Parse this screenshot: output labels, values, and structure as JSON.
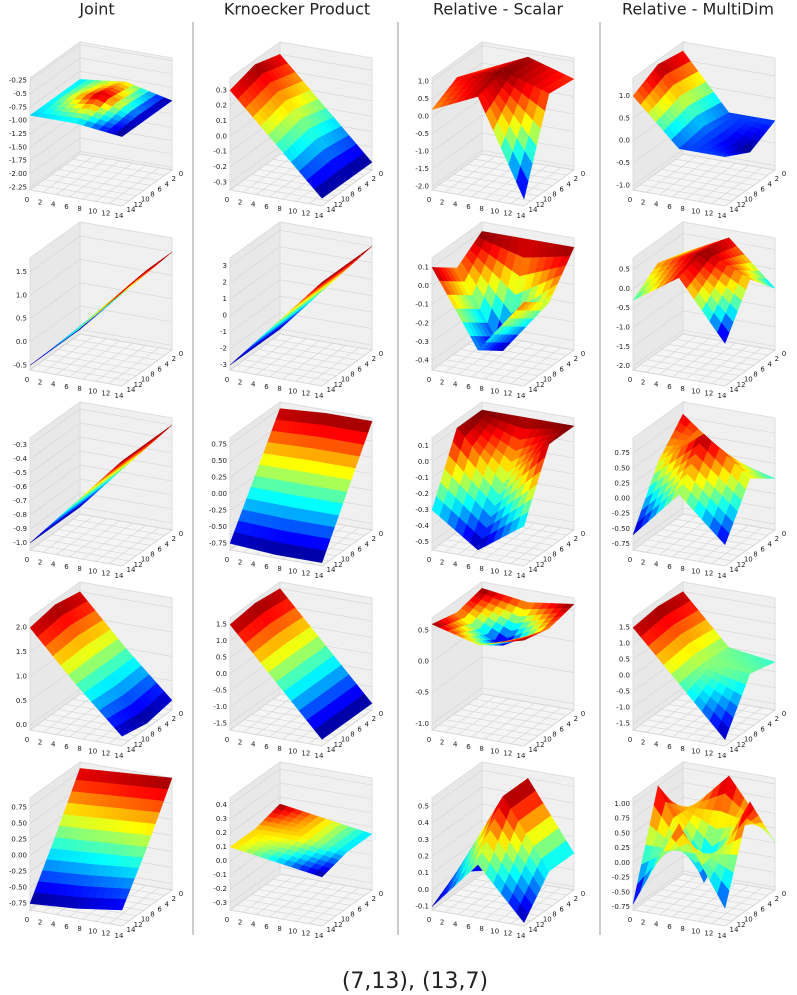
{
  "columns": [
    "Joint",
    "Krnoecker Product",
    "Relative - Scalar",
    "Relative - MultiDim"
  ],
  "caption": "(7,13), (13,7)",
  "chart_data": [
    {
      "type": "surface",
      "x": [
        0,
        7,
        14
      ],
      "y": [
        0,
        7,
        14
      ],
      "z": [
        [
          -0.9,
          -0.8,
          -1.0
        ],
        [
          -0.9,
          -0.7,
          -1.0
        ],
        [
          -0.9,
          -0.9,
          -1.0
        ]
      ],
      "xlim": [
        0,
        14
      ],
      "ylim": [
        0,
        14
      ],
      "zlim": [
        -2.3,
        -0.2
      ],
      "xticks": [
        0,
        2,
        4,
        6,
        8,
        10,
        12,
        14
      ],
      "yticks": [
        0,
        2,
        4,
        6,
        8,
        10,
        12,
        14
      ],
      "zticks": [
        -0.25,
        -0.5,
        -0.75,
        {
          "value": -1,
          "label": "-1.00"
        },
        -1.25,
        {
          "value": -1.5,
          "label": "-1.50"
        },
        -1.75,
        {
          "value": -2,
          "label": "-2.00"
        },
        -2.25
      ]
    },
    {
      "type": "surface",
      "x": [
        0,
        7,
        14
      ],
      "y": [
        0,
        7,
        14
      ],
      "z": [
        [
          0.3,
          0,
          -0.3
        ],
        [
          0.35,
          0.05,
          -0.3
        ],
        [
          0.3,
          0,
          -0.3
        ]
      ],
      "xlim": [
        0,
        14
      ],
      "ylim": [
        0,
        14
      ],
      "zlim": [
        -0.35,
        0.38
      ],
      "xticks": [
        0,
        2,
        4,
        6,
        8,
        10,
        12,
        14
      ],
      "yticks": [
        0,
        2,
        4,
        6,
        8,
        10,
        12,
        14
      ],
      "zticks": [
        0.3,
        0.2,
        0.1,
        {
          "value": 0,
          "label": "0.0"
        },
        -0.1,
        -0.2,
        -0.3
      ]
    },
    {
      "type": "surface",
      "x": [
        0,
        7,
        14
      ],
      "y": [
        0,
        7,
        14
      ],
      "z": [
        [
          0.3,
          0.9,
          0.5
        ],
        [
          0.6,
          1.0,
          0.6
        ],
        [
          0.2,
          0.8,
          -1.9
        ]
      ],
      "xlim": [
        0,
        14
      ],
      "ylim": [
        0,
        14
      ],
      "zlim": [
        -2.1,
        1.1
      ],
      "xticks": [
        0,
        2,
        4,
        6,
        8,
        10,
        12,
        14
      ],
      "yticks": [
        0,
        2,
        4,
        6,
        8,
        10,
        12,
        14
      ],
      "zticks": [
        {
          "value": 1,
          "label": "1.0"
        },
        0.5,
        {
          "value": 0,
          "label": "0.0"
        },
        -0.5,
        {
          "value": -1,
          "label": "-1.0"
        },
        -1.5,
        {
          "value": -2,
          "label": "-2.0"
        }
      ]
    },
    {
      "type": "surface",
      "x": [
        0,
        7,
        14
      ],
      "y": [
        0,
        7,
        14
      ],
      "z": [
        [
          1.2,
          0,
          0
        ],
        [
          1.3,
          0.1,
          -0.3
        ],
        [
          1.0,
          0,
          0
        ]
      ],
      "xlim": [
        0,
        14
      ],
      "ylim": [
        0,
        14
      ],
      "zlim": [
        -1.1,
        1.4
      ],
      "xticks": [
        0,
        2,
        4,
        6,
        8,
        10,
        12,
        14
      ],
      "yticks": [
        0,
        2,
        4,
        6,
        8,
        10,
        12,
        14
      ],
      "zticks": [
        {
          "value": 1,
          "label": "1.0"
        },
        0.5,
        {
          "value": 0,
          "label": "0.0"
        },
        -0.5,
        {
          "value": -1,
          "label": "-1.0"
        }
      ]
    },
    {
      "type": "surface",
      "x": [
        0,
        7,
        14
      ],
      "y": [
        0,
        7,
        14
      ],
      "z": [
        [
          -0.5,
          0.5,
          1.5
        ],
        [
          -0.5,
          0.5,
          1.5
        ],
        [
          -0.5,
          0.4,
          1.4
        ]
      ],
      "xlim": [
        0,
        14
      ],
      "ylim": [
        0,
        14
      ],
      "zlim": [
        -0.6,
        1.8
      ],
      "xticks": [
        0,
        2,
        4,
        6,
        8,
        10,
        12,
        14
      ],
      "yticks": [
        0,
        2,
        4,
        6,
        8,
        10,
        12,
        14
      ],
      "zticks": [
        1.5,
        {
          "value": 1,
          "label": "1.0"
        },
        0.5,
        {
          "value": 0,
          "label": "0.0"
        },
        -0.5
      ]
    },
    {
      "type": "surface",
      "x": [
        0,
        7,
        14
      ],
      "y": [
        0,
        7,
        14
      ],
      "z": [
        [
          -3,
          0,
          3
        ],
        [
          -3,
          0,
          3
        ],
        [
          -3,
          0,
          3
        ]
      ],
      "xlim": [
        0,
        14
      ],
      "ylim": [
        0,
        14
      ],
      "zlim": [
        -3.3,
        3.5
      ],
      "xticks": [
        0,
        2,
        4,
        6,
        8,
        10,
        12,
        14
      ],
      "yticks": [
        0,
        2,
        4,
        6,
        8,
        10,
        12,
        14
      ],
      "zticks": [
        3,
        2,
        1,
        0,
        -1,
        -2,
        -3
      ]
    },
    {
      "type": "surface",
      "x": [
        0,
        7,
        14
      ],
      "y": [
        0,
        7,
        14
      ],
      "z": [
        [
          0.1,
          0.1,
          0.1
        ],
        [
          0,
          -0.4,
          -0.1
        ],
        [
          0.1,
          -0.3,
          0
        ]
      ],
      "xlim": [
        0,
        14
      ],
      "ylim": [
        0,
        14
      ],
      "zlim": [
        -0.45,
        0.15
      ],
      "xticks": [
        0,
        2,
        4,
        6,
        8,
        10,
        12,
        14
      ],
      "yticks": [
        0,
        2,
        4,
        6,
        8,
        10,
        12,
        14
      ],
      "zticks": [
        0.1,
        {
          "value": 0,
          "label": "0.0"
        },
        -0.1,
        -0.2,
        -0.3,
        -0.4
      ]
    },
    {
      "type": "surface",
      "x": [
        0,
        7,
        14
      ],
      "y": [
        0,
        7,
        14
      ],
      "z": [
        [
          0,
          0.6,
          -0.5
        ],
        [
          0.2,
          0.7,
          0.2
        ],
        [
          -0.3,
          0.5,
          -1.0
        ]
      ],
      "xlim": [
        0,
        14
      ],
      "ylim": [
        0,
        14
      ],
      "zlim": [
        -2.1,
        0.8
      ],
      "xticks": [
        0,
        2,
        4,
        6,
        8,
        10,
        12,
        14
      ],
      "yticks": [
        0,
        2,
        4,
        6,
        8,
        10,
        12,
        14
      ],
      "zticks": [
        0.5,
        {
          "value": 0,
          "label": "0.0"
        },
        -0.5,
        {
          "value": -1,
          "label": "-1.0"
        },
        -1.5,
        {
          "value": -2,
          "label": "-2.0"
        }
      ]
    },
    {
      "type": "surface",
      "x": [
        0,
        7,
        14
      ],
      "y": [
        0,
        7,
        14
      ],
      "z": [
        [
          -1.0,
          -0.65,
          -0.3
        ],
        [
          -1.0,
          -0.65,
          -0.3
        ],
        [
          -1.0,
          -0.65,
          -0.3
        ]
      ],
      "xlim": [
        0,
        14
      ],
      "ylim": [
        0,
        14
      ],
      "zlim": [
        -1.05,
        -0.25
      ],
      "xticks": [
        0,
        2,
        4,
        6,
        8,
        10,
        12,
        14
      ],
      "yticks": [
        0,
        2,
        4,
        6,
        8,
        10,
        12,
        14
      ],
      "zticks": [
        -0.3,
        -0.4,
        -0.5,
        -0.6,
        -0.7,
        -0.8,
        -0.9,
        {
          "value": -1,
          "label": "-1.0"
        }
      ]
    },
    {
      "type": "surface",
      "x": [
        0,
        7,
        14
      ],
      "y": [
        0,
        7,
        14
      ],
      "z": [
        [
          0.75,
          0.8,
          0.8
        ],
        [
          0,
          0,
          0
        ],
        [
          -0.75,
          -0.8,
          -0.8
        ]
      ],
      "xlim": [
        0,
        14
      ],
      "ylim": [
        0,
        14
      ],
      "zlim": [
        -0.85,
        0.85
      ],
      "xticks": [
        0,
        2,
        4,
        6,
        8,
        10,
        12,
        14
      ],
      "yticks": [
        0,
        2,
        4,
        6,
        8,
        10,
        12,
        14
      ],
      "zticks": [
        0.75,
        {
          "value": 0.5,
          "label": "0.50"
        },
        0.25,
        {
          "value": 0,
          "label": "0.00"
        },
        -0.25,
        {
          "value": -0.5,
          "label": "-0.50"
        },
        -0.75
      ]
    },
    {
      "type": "surface",
      "x": [
        0,
        7,
        14
      ],
      "y": [
        0,
        7,
        14
      ],
      "z": [
        [
          0.1,
          0.1,
          0.1
        ],
        [
          0.1,
          -0.2,
          0.1
        ],
        [
          -0.3,
          -0.5,
          -0.3
        ]
      ],
      "xlim": [
        0,
        14
      ],
      "ylim": [
        0,
        14
      ],
      "zlim": [
        -0.55,
        0.15
      ],
      "xticks": [
        0,
        2,
        4,
        6,
        8,
        10,
        12,
        14
      ],
      "yticks": [
        0,
        2,
        4,
        6,
        8,
        10,
        12,
        14
      ],
      "zticks": [
        0.1,
        {
          "value": 0,
          "label": "0.0"
        },
        -0.1,
        -0.2,
        -0.3,
        -0.4,
        -0.5
      ]
    },
    {
      "type": "surface",
      "x": [
        0,
        7,
        14
      ],
      "y": [
        0,
        7,
        14
      ],
      "z": [
        [
          0.8,
          0.2,
          0
        ],
        [
          0.3,
          0.9,
          0.3
        ],
        [
          -0.6,
          0.2,
          -0.5
        ]
      ],
      "xlim": [
        0,
        14
      ],
      "ylim": [
        0,
        14
      ],
      "zlim": [
        -0.85,
        1.0
      ],
      "xticks": [
        0,
        2,
        4,
        6,
        8,
        10,
        12,
        14
      ],
      "yticks": [
        0,
        2,
        4,
        6,
        8,
        10,
        12,
        14
      ],
      "zticks": [
        0.75,
        {
          "value": 0.5,
          "label": "0.50"
        },
        0.25,
        {
          "value": 0,
          "label": "0.00"
        },
        -0.25,
        {
          "value": -0.5,
          "label": "-0.50"
        },
        -0.75
      ]
    },
    {
      "type": "surface",
      "x": [
        0,
        7,
        14
      ],
      "y": [
        0,
        7,
        14
      ],
      "z": [
        [
          2.0,
          1.0,
          0.1
        ],
        [
          2.1,
          1.0,
          0
        ],
        [
          2.0,
          1.0,
          0.1
        ]
      ],
      "xlim": [
        0,
        14
      ],
      "ylim": [
        0,
        14
      ],
      "zlim": [
        -0.1,
        2.2
      ],
      "xticks": [
        0,
        2,
        4,
        6,
        8,
        10,
        12,
        14
      ],
      "yticks": [
        0,
        2,
        4,
        6,
        8,
        10,
        12,
        14
      ],
      "zticks": [
        {
          "value": 2,
          "label": "2.0"
        },
        1.5,
        {
          "value": 1,
          "label": "1.0"
        },
        0.5,
        {
          "value": 0,
          "label": "0.0"
        }
      ]
    },
    {
      "type": "surface",
      "x": [
        0,
        7,
        14
      ],
      "y": [
        0,
        7,
        14
      ],
      "z": [
        [
          1.5,
          0,
          -1.5
        ],
        [
          1.6,
          0,
          -1.5
        ],
        [
          1.5,
          0,
          -1.5
        ]
      ],
      "xlim": [
        0,
        14
      ],
      "ylim": [
        0,
        14
      ],
      "zlim": [
        -1.7,
        1.7
      ],
      "xticks": [
        0,
        2,
        4,
        6,
        8,
        10,
        12,
        14
      ],
      "yticks": [
        0,
        2,
        4,
        6,
        8,
        10,
        12,
        14
      ],
      "zticks": [
        1.5,
        {
          "value": 1,
          "label": "1.0"
        },
        0.5,
        {
          "value": 0,
          "label": "0.0"
        },
        -0.5,
        {
          "value": -1,
          "label": "-1.0"
        },
        -1.5
      ]
    },
    {
      "type": "surface",
      "x": [
        0,
        7,
        14
      ],
      "y": [
        0,
        7,
        14
      ],
      "z": [
        [
          0.6,
          0.5,
          0.6
        ],
        [
          0.5,
          0.1,
          0.5
        ],
        [
          0.6,
          0.4,
          0.6
        ]
      ],
      "xlim": [
        0,
        14
      ],
      "ylim": [
        0,
        14
      ],
      "zlim": [
        -1.1,
        0.7
      ],
      "xticks": [
        0,
        2,
        4,
        6,
        8,
        10,
        12,
        14
      ],
      "yticks": [
        0,
        2,
        4,
        6,
        8,
        10,
        12,
        14
      ],
      "zticks": [
        0.5,
        {
          "value": 0,
          "label": "0.0"
        },
        -0.5,
        {
          "value": -1,
          "label": "-1.0"
        }
      ]
    },
    {
      "type": "surface",
      "x": [
        0,
        7,
        14
      ],
      "y": [
        0,
        7,
        14
      ],
      "z": [
        [
          1.5,
          0,
          -0.2
        ],
        [
          1.6,
          0.1,
          0
        ],
        [
          1.5,
          0,
          -1.5
        ]
      ],
      "xlim": [
        0,
        14
      ],
      "ylim": [
        0,
        14
      ],
      "zlim": [
        -1.7,
        1.8
      ],
      "xticks": [
        0,
        2,
        4,
        6,
        8,
        10,
        12,
        14
      ],
      "yticks": [
        0,
        2,
        4,
        6,
        8,
        10,
        12,
        14
      ],
      "zticks": [
        1.5,
        {
          "value": 1,
          "label": "1.0"
        },
        0.5,
        {
          "value": 0,
          "label": "0.0"
        },
        -0.5,
        {
          "value": -1,
          "label": "-1.0"
        },
        -1.5
      ]
    },
    {
      "type": "surface",
      "x": [
        0,
        7,
        14
      ],
      "y": [
        0,
        7,
        14
      ],
      "z": [
        [
          0.8,
          0.85,
          0.9
        ],
        [
          0,
          0.05,
          0.1
        ],
        [
          -0.75,
          -0.7,
          -0.6
        ]
      ],
      "xlim": [
        0,
        14
      ],
      "ylim": [
        0,
        14
      ],
      "zlim": [
        -0.85,
        0.9
      ],
      "xticks": [
        0,
        2,
        4,
        6,
        8,
        10,
        12,
        14
      ],
      "yticks": [
        0,
        2,
        4,
        6,
        8,
        10,
        12,
        14
      ],
      "zticks": [
        0.75,
        {
          "value": 0.5,
          "label": "0.50"
        },
        0.25,
        {
          "value": 0,
          "label": "0.00"
        },
        -0.25,
        {
          "value": -0.5,
          "label": "-0.50"
        },
        -0.75
      ]
    },
    {
      "type": "surface",
      "x": [
        0,
        7,
        14
      ],
      "y": [
        0,
        7,
        14
      ],
      "z": [
        [
          0.15,
          0.1,
          0.05
        ],
        [
          0.1,
          0.1,
          0.05
        ],
        [
          0.1,
          0.05,
          0
        ]
      ],
      "xlim": [
        0,
        14
      ],
      "ylim": [
        0,
        14
      ],
      "zlim": [
        -0.35,
        0.45
      ],
      "xticks": [
        0,
        2,
        4,
        6,
        8,
        10,
        12,
        14
      ],
      "yticks": [
        0,
        2,
        4,
        6,
        8,
        10,
        12,
        14
      ],
      "zticks": [
        0.4,
        0.3,
        0.2,
        0.1,
        {
          "value": 0,
          "label": "0.0"
        },
        -0.1,
        -0.2,
        -0.3
      ]
    },
    {
      "type": "surface",
      "x": [
        0,
        7,
        14
      ],
      "y": [
        0,
        7,
        14
      ],
      "z": [
        [
          -0.1,
          0.5,
          0.1
        ],
        [
          0,
          0.5,
          0.1
        ],
        [
          -0.1,
          0.2,
          -0.1
        ]
      ],
      "xlim": [
        0,
        14
      ],
      "ylim": [
        0,
        14
      ],
      "zlim": [
        -0.12,
        0.55
      ],
      "xticks": [
        0,
        2,
        4,
        6,
        8,
        10,
        12,
        14
      ],
      "yticks": [
        0,
        2,
        4,
        6,
        8,
        10,
        12,
        14
      ],
      "zticks": [
        0.5,
        0.4,
        0.3,
        0.2,
        0.1,
        {
          "value": 0,
          "label": "0.0"
        },
        -0.1
      ]
    },
    {
      "type": "surface",
      "x": [
        0,
        7,
        14
      ],
      "y": [
        0,
        7,
        14
      ],
      "z": [
        [
          0.2,
          1.0,
          0
        ],
        [
          1.0,
          -0.5,
          1.0
        ],
        [
          -0.7,
          0.8,
          -0.5
        ]
      ],
      "xlim": [
        0,
        14
      ],
      "ylim": [
        0,
        14
      ],
      "zlim": [
        -0.8,
        1.1
      ],
      "xticks": [
        0,
        2,
        4,
        6,
        8,
        10,
        12,
        14
      ],
      "yticks": [
        0,
        2,
        4,
        6,
        8,
        10,
        12,
        14
      ],
      "zticks": [
        {
          "value": 1,
          "label": "1.00"
        },
        0.75,
        {
          "value": 0.5,
          "label": "0.50"
        },
        0.25,
        {
          "value": 0,
          "label": "0.00"
        },
        -0.25,
        {
          "value": -0.5,
          "label": "-0.50"
        },
        -0.75
      ]
    }
  ]
}
